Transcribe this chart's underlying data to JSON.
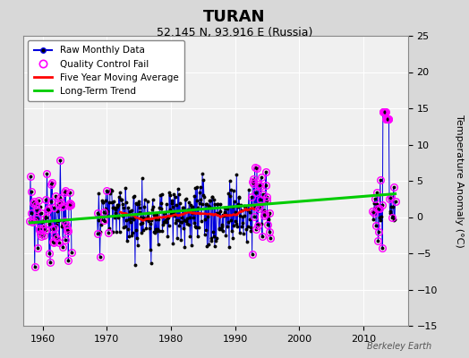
{
  "title": "TURAN",
  "subtitle": "52.145 N, 93.916 E (Russia)",
  "ylabel": "Temperature Anomaly (°C)",
  "watermark": "Berkeley Earth",
  "xlim": [
    1957,
    2017
  ],
  "ylim": [
    -15,
    25
  ],
  "yticks": [
    -15,
    -10,
    -5,
    0,
    5,
    10,
    15,
    20,
    25
  ],
  "xticks": [
    1960,
    1970,
    1980,
    1990,
    2000,
    2010
  ],
  "bg_color": "#d8d8d8",
  "plot_bg_color": "#f0f0f0",
  "raw_color": "#0000dd",
  "dot_color": "#000000",
  "qc_color": "#ff00ff",
  "ma_color": "#ff0000",
  "trend_color": "#00cc00",
  "grid_color": "#ffffff",
  "seed": 99
}
